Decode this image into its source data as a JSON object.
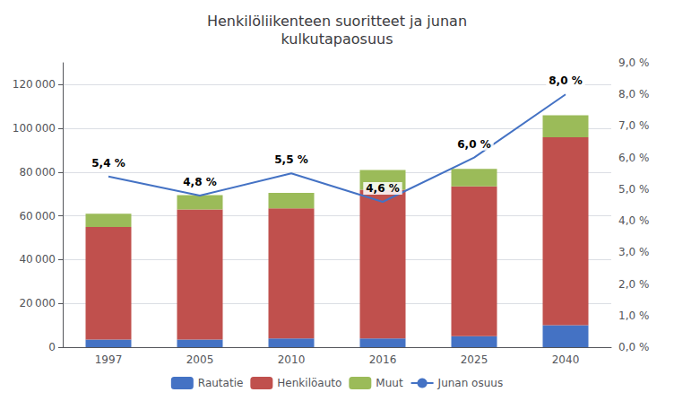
{
  "chart_data": {
    "type": "bar",
    "title": "Henkilöliikenteen suoritteet ja junan\nkulkutapaosuus",
    "categories": [
      "1997",
      "2005",
      "2010",
      "2016",
      "2025",
      "2040"
    ],
    "stacked": true,
    "series": [
      {
        "name": "Rautatie",
        "color": "#4472C4",
        "values": [
          3500,
          3500,
          4000,
          4000,
          5000,
          10000
        ]
      },
      {
        "name": "Henkilöauto",
        "color": "#C0504D",
        "values": [
          51500,
          59500,
          59500,
          68000,
          68500,
          86000
        ]
      },
      {
        "name": "Muut",
        "color": "#9BBB59",
        "values": [
          6000,
          6500,
          7000,
          9000,
          8000,
          10000
        ]
      },
      {
        "name": "Junan osuus",
        "type": "line",
        "axis": "y2",
        "color": "#4472C4",
        "values": [
          5.4,
          4.8,
          5.5,
          4.6,
          6.0,
          8.0
        ],
        "data_labels": true,
        "value_labels": [
          "5,4 %",
          "4,8 %",
          "5,5 %",
          "4,6 %",
          "6,0 %",
          "8,0 %"
        ]
      }
    ],
    "ylim": [
      0,
      130000
    ],
    "yticks": [
      0,
      {
        "value": 20000,
        "label": "20 000"
      },
      {
        "value": 40000,
        "label": "40 000"
      },
      {
        "value": 60000,
        "label": "60 000"
      },
      {
        "value": 80000,
        "label": "80 000"
      },
      {
        "value": 100000,
        "label": "100 000"
      },
      {
        "value": 120000,
        "label": "120 000"
      }
    ],
    "y2lim": [
      0,
      9.0
    ],
    "y2ticks": [
      {
        "value": 0.0,
        "label": "0,0 %"
      },
      {
        "value": 1.0,
        "label": "1,0 %"
      },
      {
        "value": 2.0,
        "label": "2,0 %"
      },
      {
        "value": 3.0,
        "label": "3,0 %"
      },
      {
        "value": 4.0,
        "label": "4,0 %"
      },
      {
        "value": 5.0,
        "label": "5,0 %"
      },
      {
        "value": 6.0,
        "label": "6,0 %"
      },
      {
        "value": 7.0,
        "label": "7,0 %"
      },
      {
        "value": 8.0,
        "label": "8,0 %"
      },
      {
        "value": 9.0,
        "label": "9,0 %"
      }
    ],
    "grid": true,
    "legend": "bottom"
  }
}
